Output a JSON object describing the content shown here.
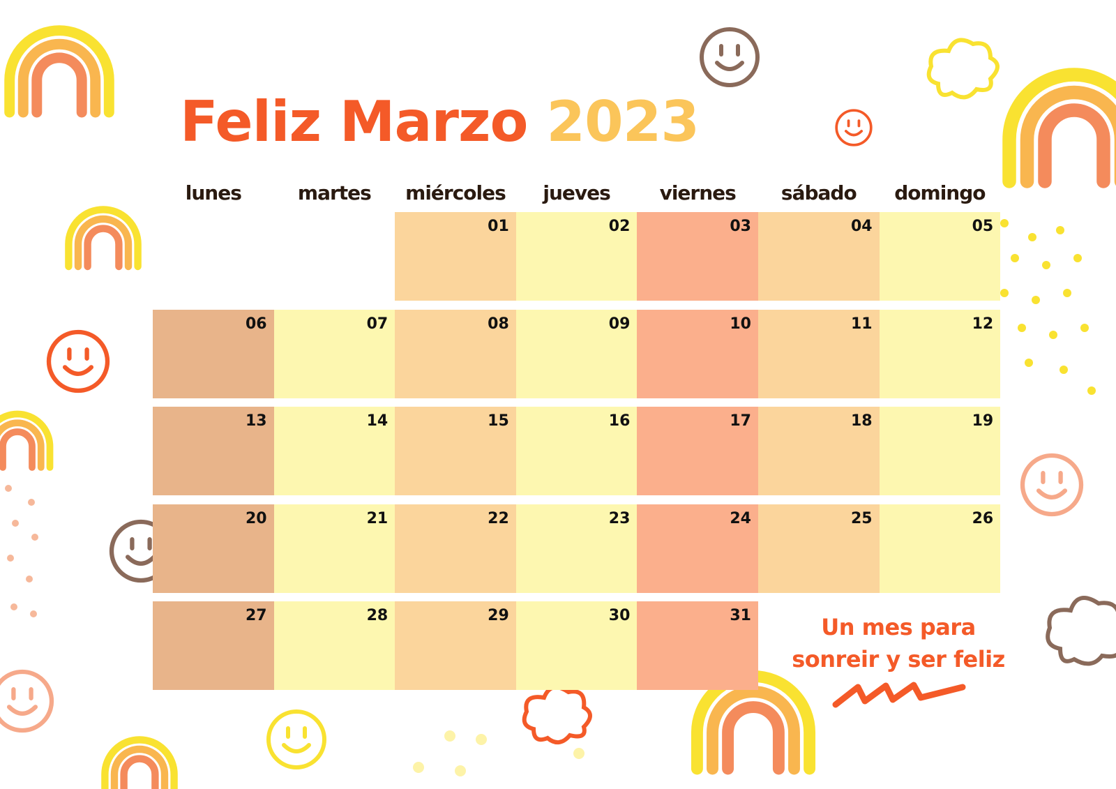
{
  "header": {
    "title": "Feliz Marzo",
    "year": "2023"
  },
  "weekdays": [
    "lunes",
    "martes",
    "miércoles",
    "jueves",
    "viernes",
    "sábado",
    "domingo"
  ],
  "weeks": [
    [
      null,
      null,
      "01",
      "02",
      "03",
      "04",
      "05"
    ],
    [
      "06",
      "07",
      "08",
      "09",
      "10",
      "11",
      "12"
    ],
    [
      "13",
      "14",
      "15",
      "16",
      "17",
      "18",
      "19"
    ],
    [
      "20",
      "21",
      "22",
      "23",
      "24",
      "25",
      "26"
    ],
    [
      "27",
      "28",
      "29",
      "30",
      "31",
      null,
      null
    ]
  ],
  "tagline": [
    "Un mes para",
    "sonreir y ser feliz"
  ]
}
